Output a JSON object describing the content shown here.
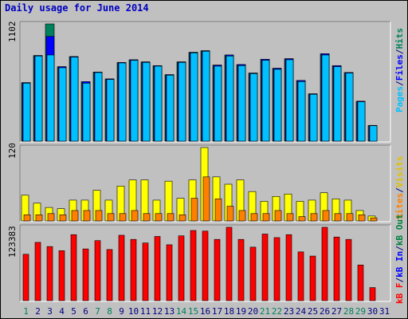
{
  "title": "Daily usage for June 2014",
  "colors": {
    "background": "#c0c0c0",
    "plot_background": "#c0c0c0",
    "hits": "#00805c",
    "files": "#0000ff",
    "pages": "#00c0ff",
    "visits": "#ffff00",
    "sites": "#ff8000",
    "kb": "#ff0000",
    "kb_out": "#008040",
    "kb_in": "#0000ff",
    "weekend_label": "#00805c",
    "weekday_label": "#000080"
  },
  "chart_data": [
    {
      "type": "bar",
      "panel": "top",
      "max_label": "1102",
      "ylim": [
        0,
        1102
      ],
      "categories": [
        "1",
        "2",
        "3",
        "4",
        "5",
        "6",
        "7",
        "8",
        "9",
        "10",
        "11",
        "12",
        "13",
        "14",
        "15",
        "16",
        "17",
        "18",
        "19",
        "20",
        "21",
        "22",
        "23",
        "24",
        "25",
        "26",
        "27",
        "28",
        "29",
        "30",
        "31"
      ],
      "series": [
        {
          "name": "Hits",
          "color": "#00805c",
          "values": [
            550,
            805,
            1102,
            700,
            795,
            560,
            650,
            585,
            740,
            765,
            745,
            710,
            625,
            745,
            835,
            850,
            715,
            810,
            720,
            640,
            770,
            685,
            775,
            570,
            445,
            822,
            710,
            645,
            375,
            148,
            0
          ]
        },
        {
          "name": "Files",
          "color": "#0000ff",
          "values": [
            550,
            805,
            985,
            700,
            795,
            560,
            650,
            585,
            740,
            765,
            745,
            710,
            625,
            745,
            835,
            850,
            715,
            810,
            720,
            640,
            770,
            685,
            775,
            570,
            445,
            822,
            710,
            645,
            375,
            148,
            0
          ]
        },
        {
          "name": "Pages",
          "color": "#00c0ff",
          "values": [
            545,
            800,
            810,
            690,
            790,
            545,
            645,
            580,
            735,
            760,
            740,
            705,
            620,
            740,
            830,
            845,
            705,
            800,
            710,
            635,
            760,
            675,
            765,
            560,
            440,
            810,
            700,
            640,
            370,
            145,
            0
          ]
        }
      ],
      "legend": [
        "Pages",
        "Files",
        "Hits"
      ]
    },
    {
      "type": "bar",
      "panel": "middle",
      "max_label": "120",
      "ylim": [
        0,
        120
      ],
      "categories": [
        "1",
        "2",
        "3",
        "4",
        "5",
        "6",
        "7",
        "8",
        "9",
        "10",
        "11",
        "12",
        "13",
        "14",
        "15",
        "16",
        "17",
        "18",
        "19",
        "20",
        "21",
        "22",
        "23",
        "24",
        "25",
        "26",
        "27",
        "28",
        "29",
        "30",
        "31"
      ],
      "series": [
        {
          "name": "Visits",
          "color": "#ffff00",
          "values": [
            42,
            29,
            22,
            20,
            34,
            34,
            50,
            34,
            57,
            67,
            67,
            34,
            65,
            37,
            67,
            120,
            72,
            60,
            67,
            48,
            32,
            40,
            44,
            32,
            34,
            46,
            36,
            34,
            17,
            8,
            0
          ]
        },
        {
          "name": "Sites",
          "color": "#ff8000",
          "values": [
            10,
            10,
            12,
            10,
            17,
            17,
            17,
            12,
            12,
            17,
            12,
            12,
            12,
            10,
            37,
            72,
            36,
            24,
            17,
            12,
            12,
            17,
            12,
            7,
            12,
            17,
            12,
            12,
            10,
            5,
            0
          ]
        }
      ],
      "legend": [
        "Visits",
        "Sites"
      ]
    },
    {
      "type": "bar",
      "panel": "bottom",
      "max_label": "123383",
      "ylim": [
        0,
        123383
      ],
      "categories": [
        "1",
        "2",
        "3",
        "4",
        "5",
        "6",
        "7",
        "8",
        "9",
        "10",
        "11",
        "12",
        "13",
        "14",
        "15",
        "16",
        "17",
        "18",
        "19",
        "20",
        "21",
        "22",
        "23",
        "24",
        "25",
        "26",
        "27",
        "28",
        "29",
        "30",
        "31"
      ],
      "series": [
        {
          "name": "KBytes",
          "color": "#ff0000",
          "values": [
            78000,
            98000,
            91000,
            84000,
            111000,
            87000,
            101000,
            86000,
            110000,
            103000,
            97000,
            108000,
            94000,
            109000,
            118000,
            117000,
            103000,
            123383,
            103000,
            90000,
            112000,
            106000,
            111000,
            82000,
            75000,
            123383,
            107000,
            103000,
            60000,
            22000,
            0
          ]
        }
      ],
      "legend": [
        "kB F",
        "kB In",
        "kB Out"
      ]
    }
  ],
  "x_labels": {
    "days": [
      "1",
      "2",
      "3",
      "4",
      "5",
      "6",
      "7",
      "8",
      "9",
      "10",
      "11",
      "12",
      "13",
      "14",
      "15",
      "16",
      "17",
      "18",
      "19",
      "20",
      "21",
      "22",
      "23",
      "24",
      "25",
      "26",
      "27",
      "28",
      "29",
      "30",
      "31"
    ],
    "weekend": [
      1,
      7,
      8,
      14,
      15,
      21,
      22,
      28,
      29
    ]
  }
}
